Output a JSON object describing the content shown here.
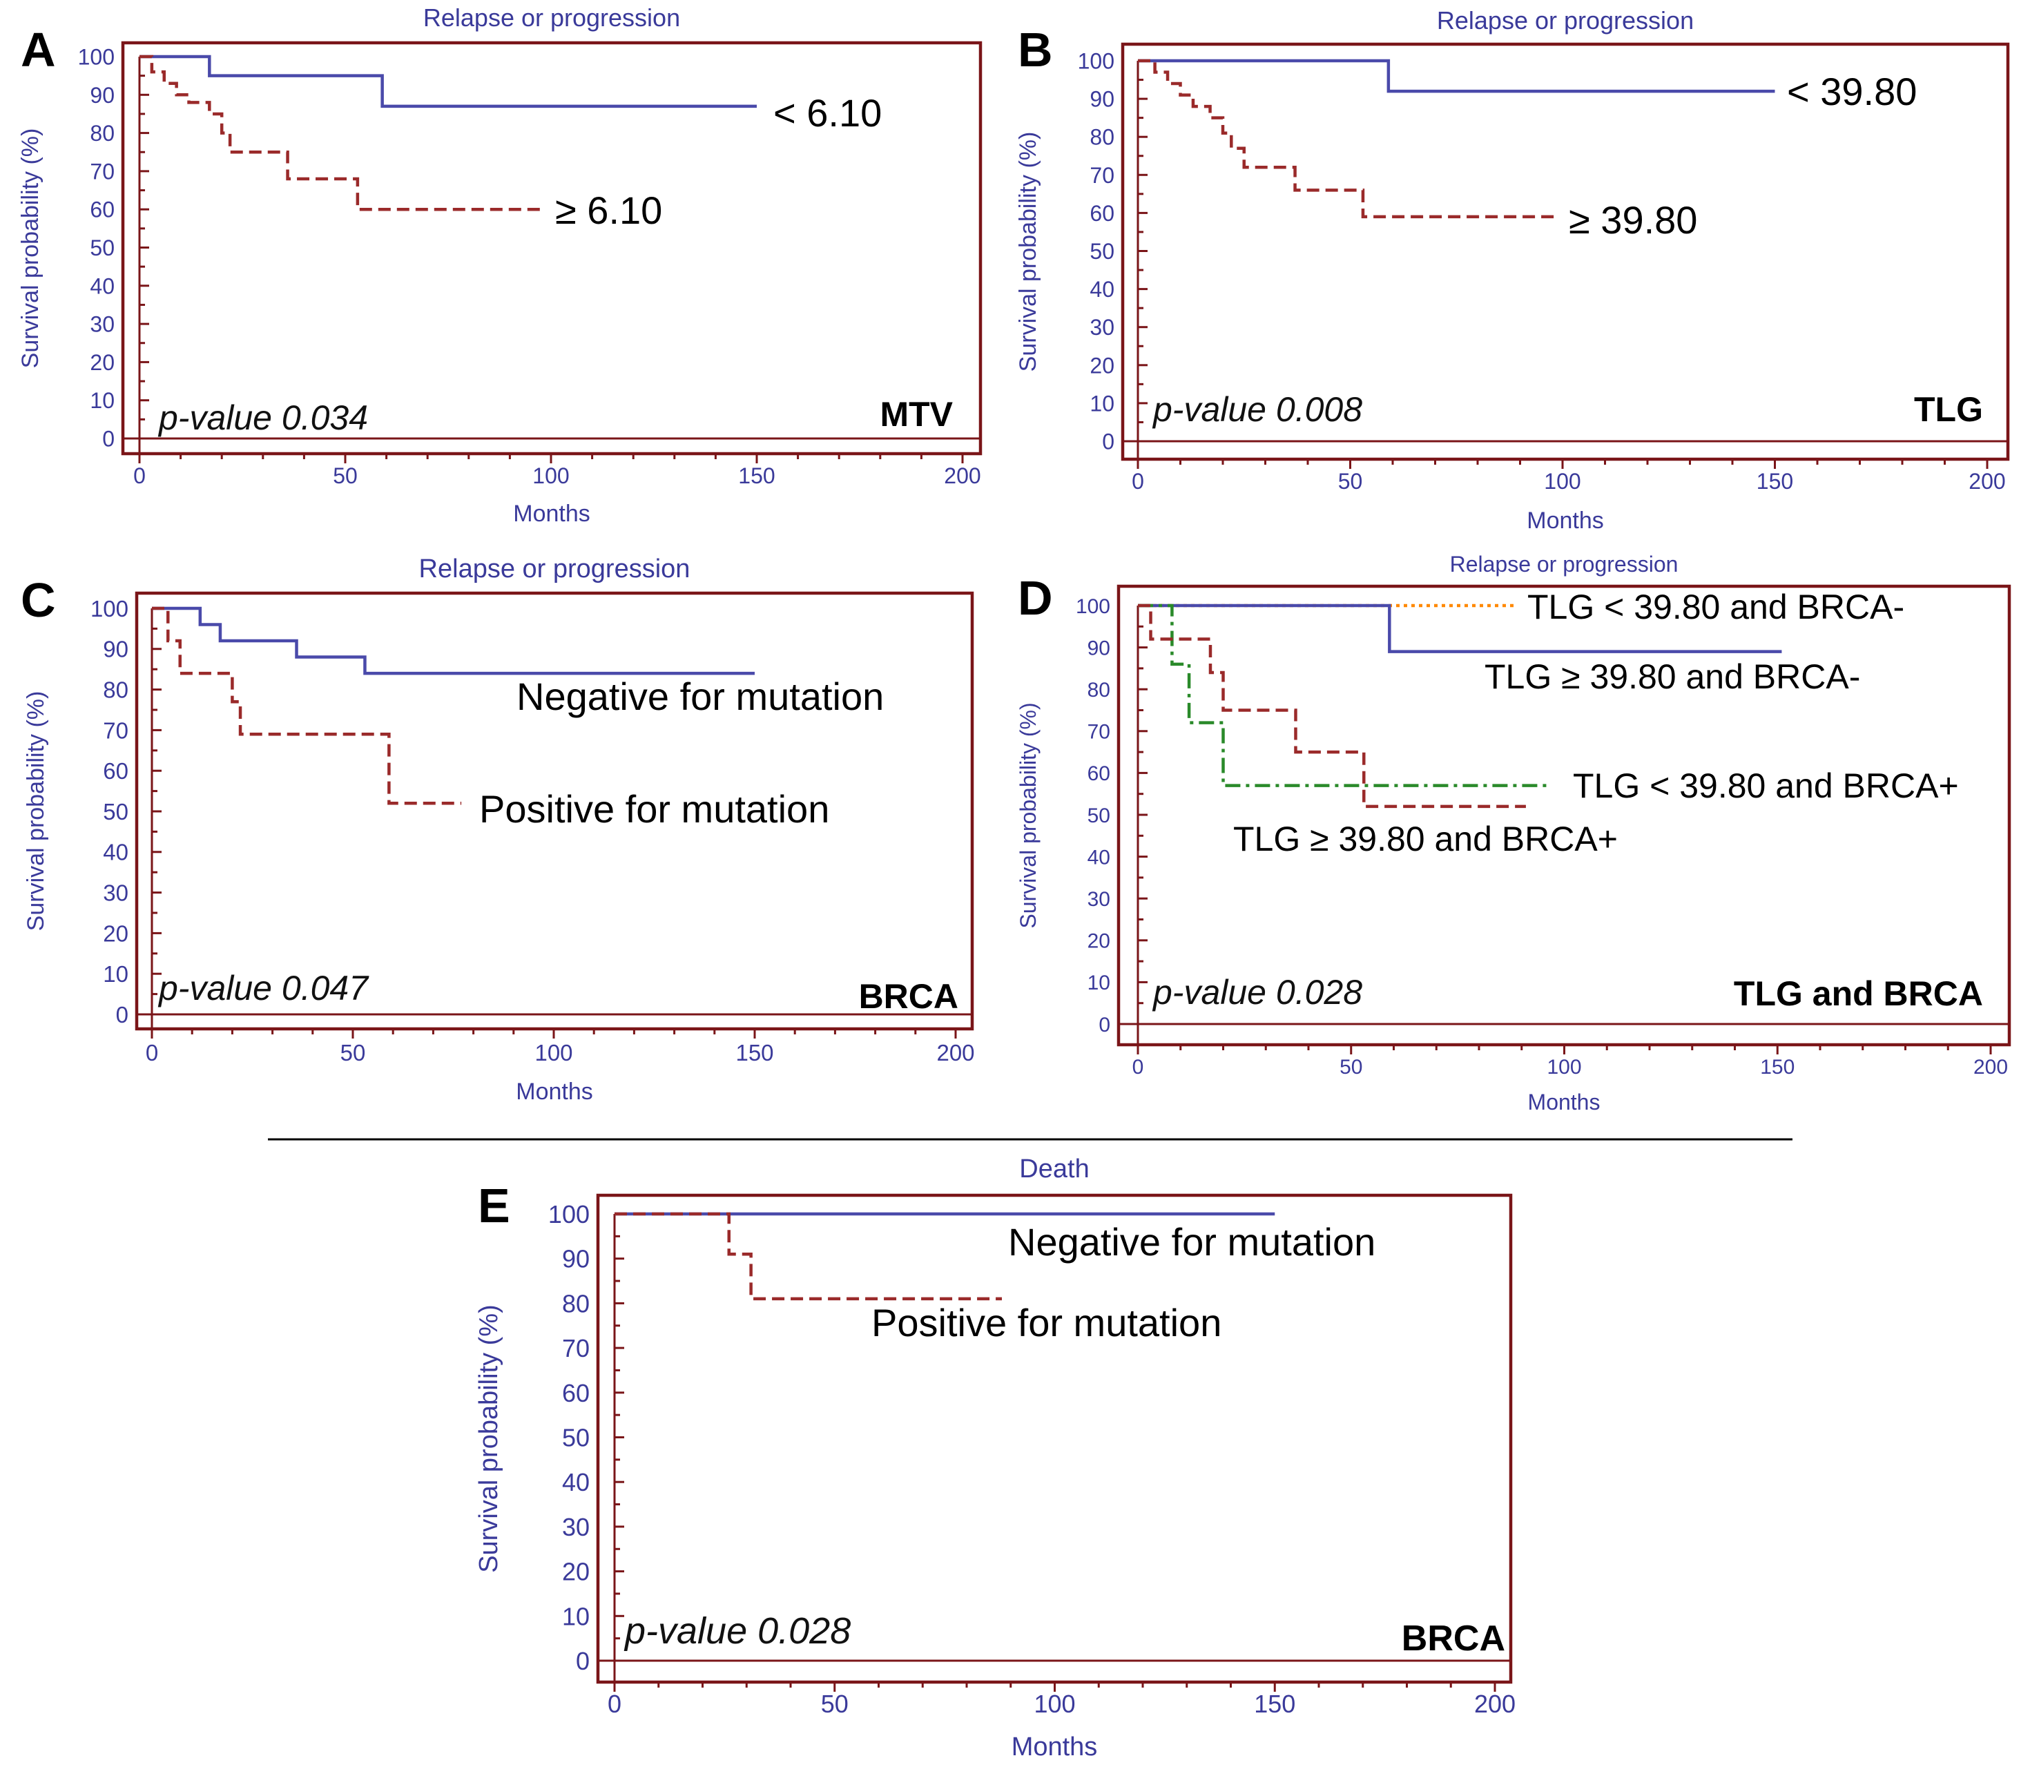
{
  "colors": {
    "frame": "#7a1518",
    "tick_text": "#3a3a9a",
    "blue": "#4a4aaa",
    "red": "#9a2a2a",
    "orange": "#ff8800",
    "green": "#2a8a2a"
  },
  "chart_data": [
    {
      "panel": "A",
      "type": "line",
      "title": "Relapse or progression",
      "xlabel": "Months",
      "ylabel": "Survival probability (%)",
      "xlim": [
        0,
        200
      ],
      "ylim": [
        0,
        100
      ],
      "xticks": [
        0,
        50,
        100,
        150,
        200
      ],
      "yticks": [
        0,
        10,
        20,
        30,
        40,
        50,
        60,
        70,
        80,
        90,
        100
      ],
      "pvalue": "p-value 0.034",
      "corner_label": "MTV",
      "series": [
        {
          "name": "< 6.10",
          "color": "#4a4aaa",
          "style": "solid",
          "x": [
            0,
            17,
            59,
            150
          ],
          "y": [
            100,
            95,
            87,
            87
          ]
        },
        {
          "name": "≥ 6.10",
          "color": "#9a2a2a",
          "style": "dashed",
          "x": [
            0,
            3,
            6,
            9,
            12,
            17,
            20,
            22,
            36,
            53,
            98
          ],
          "y": [
            100,
            96,
            93,
            90,
            88,
            85,
            80,
            75,
            68,
            60,
            60
          ]
        }
      ]
    },
    {
      "panel": "B",
      "type": "line",
      "title": "Relapse or progression",
      "xlabel": "Months",
      "ylabel": "Survival probability (%)",
      "xlim": [
        0,
        200
      ],
      "ylim": [
        0,
        100
      ],
      "xticks": [
        0,
        50,
        100,
        150,
        200
      ],
      "yticks": [
        0,
        10,
        20,
        30,
        40,
        50,
        60,
        70,
        80,
        90,
        100
      ],
      "pvalue": "p-value 0.008",
      "corner_label": "TLG",
      "series": [
        {
          "name": "< 39.80",
          "color": "#4a4aaa",
          "style": "solid",
          "x": [
            0,
            59,
            150
          ],
          "y": [
            100,
            92,
            92
          ]
        },
        {
          "name": "≥ 39.80",
          "color": "#9a2a2a",
          "style": "dashed",
          "x": [
            0,
            4,
            7,
            10,
            13,
            17,
            20,
            22,
            25,
            37,
            53,
            98
          ],
          "y": [
            100,
            97,
            94,
            91,
            88,
            85,
            81,
            77,
            72,
            66,
            59,
            59
          ]
        }
      ]
    },
    {
      "panel": "C",
      "type": "line",
      "title": "Relapse or progression",
      "xlabel": "Months",
      "ylabel": "Survival probability (%)",
      "xlim": [
        0,
        200
      ],
      "ylim": [
        0,
        100
      ],
      "xticks": [
        0,
        50,
        100,
        150,
        200
      ],
      "yticks": [
        0,
        10,
        20,
        30,
        40,
        50,
        60,
        70,
        80,
        90,
        100
      ],
      "pvalue": "p-value 0.047",
      "corner_label": "BRCA",
      "series": [
        {
          "name": "Negative for mutation",
          "color": "#4a4aaa",
          "style": "solid",
          "x": [
            0,
            12,
            17,
            36,
            53,
            150
          ],
          "y": [
            100,
            96,
            92,
            88,
            84,
            84
          ]
        },
        {
          "name": "Positive for mutation",
          "color": "#9a2a2a",
          "style": "dashed",
          "x": [
            0,
            4,
            7,
            20,
            22,
            59,
            77
          ],
          "y": [
            100,
            92,
            84,
            77,
            69,
            52,
            52
          ]
        }
      ]
    },
    {
      "panel": "D",
      "type": "line",
      "title": "Relapse or progression",
      "xlabel": "Months",
      "ylabel": "Survival probability (%)",
      "xlim": [
        0,
        200
      ],
      "ylim": [
        0,
        100
      ],
      "xticks": [
        0,
        50,
        100,
        150,
        200
      ],
      "yticks": [
        0,
        10,
        20,
        30,
        40,
        50,
        60,
        70,
        80,
        90,
        100
      ],
      "pvalue": "p-value 0.028",
      "corner_label": "TLG and BRCA",
      "series": [
        {
          "name": "TLG < 39.80 and BRCA-",
          "color": "#ff8800",
          "style": "dotted",
          "x": [
            0,
            89
          ],
          "y": [
            100,
            100
          ]
        },
        {
          "name": "TLG ≥ 39.80 and BRCA-",
          "color": "#4a4aaa",
          "style": "solid",
          "x": [
            0,
            59,
            151
          ],
          "y": [
            100,
            89,
            89
          ]
        },
        {
          "name": "TLG < 39.80 and BRCA+",
          "color": "#2a8a2a",
          "style": "dashdot",
          "x": [
            0,
            8,
            12,
            20,
            97
          ],
          "y": [
            100,
            86,
            72,
            57,
            57
          ]
        },
        {
          "name": "TLG ≥ 39.80 and BRCA+",
          "color": "#9a2a2a",
          "style": "dashed",
          "x": [
            0,
            3,
            17,
            20,
            37,
            53,
            91
          ],
          "y": [
            100,
            92,
            84,
            75,
            65,
            52,
            52
          ]
        }
      ]
    },
    {
      "panel": "E",
      "type": "line",
      "title": "Death",
      "xlabel": "Months",
      "ylabel": "Survival probability (%)",
      "xlim": [
        0,
        200
      ],
      "ylim": [
        0,
        100
      ],
      "xticks": [
        0,
        50,
        100,
        150,
        200
      ],
      "yticks": [
        0,
        10,
        20,
        30,
        40,
        50,
        60,
        70,
        80,
        90,
        100
      ],
      "pvalue": "p-value 0.028",
      "corner_label": "BRCA",
      "series": [
        {
          "name": "Negative for mutation",
          "color": "#4a4aaa",
          "style": "solid",
          "x": [
            0,
            150
          ],
          "y": [
            100,
            100
          ]
        },
        {
          "name": "Positive for mutation",
          "color": "#9a2a2a",
          "style": "dashed",
          "x": [
            0,
            26,
            31,
            88
          ],
          "y": [
            100,
            91,
            81,
            81
          ]
        }
      ]
    }
  ]
}
